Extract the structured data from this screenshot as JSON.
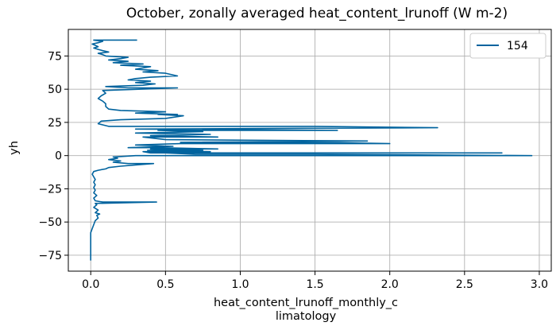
{
  "colors": {
    "series": "#00639e",
    "grid": "#b0b0b0",
    "axis": "#000000",
    "legend_border": "#cccccc"
  },
  "chart_data": {
    "type": "line",
    "title": "October, zonally averaged heat_content_lrunoff (W m-2)",
    "xlabel_line1": "heat_content_lrunoff_monthly_c",
    "xlabel_line2": "limatology",
    "ylabel": "yh",
    "xlim": [
      -0.15,
      3.08
    ],
    "ylim": [
      -87,
      95
    ],
    "xticks": [
      0.0,
      0.5,
      1.0,
      1.5,
      2.0,
      2.5,
      3.0
    ],
    "xtick_labels": [
      "0.0",
      "0.5",
      "1.0",
      "1.5",
      "2.0",
      "2.5",
      "3.0"
    ],
    "yticks": [
      -75,
      -50,
      -25,
      0,
      25,
      50,
      75
    ],
    "ytick_labels": [
      "−75",
      "−50",
      "−25",
      "0",
      "25",
      "50",
      "75"
    ],
    "grid": true,
    "legend_position": "top-right",
    "series": [
      {
        "name": "154",
        "points": [
          [
            0.0,
            -79
          ],
          [
            0.0,
            -72
          ],
          [
            0.0,
            -65
          ],
          [
            0.0,
            -58
          ],
          [
            0.01,
            -55
          ],
          [
            0.02,
            -52
          ],
          [
            0.03,
            -49
          ],
          [
            0.05,
            -47
          ],
          [
            0.04,
            -45
          ],
          [
            0.06,
            -44
          ],
          [
            0.03,
            -43
          ],
          [
            0.05,
            -41
          ],
          [
            0.02,
            -39
          ],
          [
            0.04,
            -37
          ],
          [
            0.03,
            -36
          ],
          [
            0.44,
            -35
          ],
          [
            0.08,
            -35
          ],
          [
            0.03,
            -34
          ],
          [
            0.02,
            -32
          ],
          [
            0.04,
            -30
          ],
          [
            0.02,
            -28
          ],
          [
            0.03,
            -26
          ],
          [
            0.02,
            -24
          ],
          [
            0.03,
            -22
          ],
          [
            0.02,
            -20
          ],
          [
            0.03,
            -18
          ],
          [
            0.02,
            -16
          ],
          [
            0.01,
            -14
          ],
          [
            0.02,
            -12
          ],
          [
            0.05,
            -11
          ],
          [
            0.1,
            -10
          ],
          [
            0.12,
            -9
          ],
          [
            0.2,
            -8
          ],
          [
            0.3,
            -7
          ],
          [
            0.42,
            -6
          ],
          [
            0.25,
            -6
          ],
          [
            0.15,
            -5
          ],
          [
            0.2,
            -4
          ],
          [
            0.12,
            -3
          ],
          [
            0.18,
            -2
          ],
          [
            0.15,
            -1
          ],
          [
            0.3,
            0
          ],
          [
            0.7,
            0
          ],
          [
            1.5,
            0
          ],
          [
            2.2,
            0
          ],
          [
            2.95,
            0
          ],
          [
            1.5,
            1
          ],
          [
            0.7,
            1
          ],
          [
            0.5,
            2
          ],
          [
            2.75,
            2
          ],
          [
            1.2,
            2
          ],
          [
            0.4,
            2
          ],
          [
            0.35,
            3
          ],
          [
            0.8,
            3
          ],
          [
            0.38,
            4
          ],
          [
            0.75,
            4
          ],
          [
            0.4,
            5
          ],
          [
            0.85,
            5
          ],
          [
            0.45,
            6
          ],
          [
            0.25,
            6
          ],
          [
            0.55,
            7
          ],
          [
            0.3,
            8
          ],
          [
            0.6,
            9
          ],
          [
            2.0,
            9
          ],
          [
            1.5,
            10
          ],
          [
            0.6,
            10
          ],
          [
            1.85,
            11
          ],
          [
            0.5,
            12
          ],
          [
            0.35,
            14
          ],
          [
            0.85,
            14
          ],
          [
            0.4,
            15
          ],
          [
            0.8,
            16
          ],
          [
            0.3,
            17
          ],
          [
            0.75,
            18
          ],
          [
            0.45,
            19
          ],
          [
            1.65,
            19
          ],
          [
            0.3,
            20
          ],
          [
            2.32,
            21
          ],
          [
            1.5,
            22
          ],
          [
            0.12,
            22
          ],
          [
            0.05,
            24
          ],
          [
            0.07,
            26
          ],
          [
            0.2,
            27
          ],
          [
            0.5,
            28
          ],
          [
            0.62,
            30
          ],
          [
            0.45,
            31
          ],
          [
            0.58,
            31
          ],
          [
            0.3,
            32
          ],
          [
            0.5,
            33
          ],
          [
            0.2,
            34
          ],
          [
            0.12,
            35
          ],
          [
            0.1,
            37
          ],
          [
            0.1,
            39
          ],
          [
            0.08,
            41
          ],
          [
            0.05,
            43
          ],
          [
            0.07,
            45
          ],
          [
            0.1,
            47
          ],
          [
            0.08,
            49
          ],
          [
            0.58,
            51
          ],
          [
            0.25,
            51
          ],
          [
            0.1,
            52
          ],
          [
            0.35,
            53
          ],
          [
            0.43,
            54
          ],
          [
            0.3,
            55
          ],
          [
            0.4,
            56
          ],
          [
            0.25,
            57
          ],
          [
            0.3,
            58
          ],
          [
            0.4,
            59
          ],
          [
            0.58,
            60
          ],
          [
            0.5,
            62
          ],
          [
            0.35,
            63
          ],
          [
            0.45,
            64
          ],
          [
            0.3,
            65
          ],
          [
            0.4,
            67
          ],
          [
            0.2,
            68
          ],
          [
            0.35,
            69
          ],
          [
            0.15,
            70
          ],
          [
            0.25,
            71
          ],
          [
            0.12,
            72
          ],
          [
            0.2,
            73
          ],
          [
            0.25,
            74
          ],
          [
            0.1,
            75
          ],
          [
            0.08,
            76
          ],
          [
            0.05,
            77
          ],
          [
            0.12,
            78
          ],
          [
            0.08,
            79
          ],
          [
            0.05,
            80
          ],
          [
            0.02,
            81
          ],
          [
            0.05,
            82
          ],
          [
            0.03,
            83
          ],
          [
            0.01,
            84
          ],
          [
            0.05,
            85
          ],
          [
            0.08,
            86
          ],
          [
            0.02,
            87
          ],
          [
            0.31,
            87
          ]
        ]
      }
    ]
  }
}
